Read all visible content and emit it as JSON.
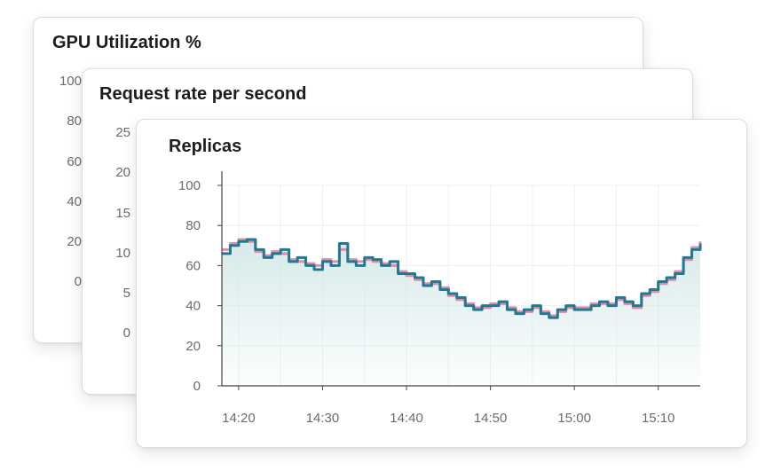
{
  "cards": [
    {
      "title": "GPU Utilization %",
      "y_ticks": [
        "100",
        "80",
        "60",
        "40",
        "20",
        "0"
      ]
    },
    {
      "title": "Request rate per second",
      "y_ticks": [
        "25",
        "20",
        "15",
        "10",
        "5",
        "0"
      ]
    },
    {
      "title": "Replicas"
    }
  ],
  "colors": {
    "series_primary": "#1f7a93",
    "series_secondary": "#e88aa6",
    "area_fill": "#d4e9e7",
    "grid": "#eceff1",
    "axis": "#444444"
  },
  "chart_data": {
    "type": "line",
    "title": "Replicas",
    "xlabel": "",
    "ylabel": "",
    "ylim": [
      0,
      100
    ],
    "y_ticks": [
      0,
      20,
      40,
      60,
      80,
      100
    ],
    "x_ticks": [
      "14:20",
      "14:30",
      "14:40",
      "14:50",
      "15:00",
      "15:10"
    ],
    "x_range_minutes": [
      "14:18",
      "15:15"
    ],
    "grid": true,
    "step": true,
    "series": [
      {
        "color": "#1f7a93",
        "x": [
          "14:18",
          "14:19",
          "14:20",
          "14:21",
          "14:22",
          "14:23",
          "14:24",
          "14:25",
          "14:26",
          "14:27",
          "14:28",
          "14:29",
          "14:30",
          "14:31",
          "14:32",
          "14:33",
          "14:34",
          "14:35",
          "14:36",
          "14:37",
          "14:38",
          "14:39",
          "14:40",
          "14:41",
          "14:42",
          "14:43",
          "14:44",
          "14:45",
          "14:46",
          "14:47",
          "14:48",
          "14:49",
          "14:50",
          "14:51",
          "14:52",
          "14:53",
          "14:54",
          "14:55",
          "14:56",
          "14:57",
          "14:58",
          "14:59",
          "15:00",
          "15:01",
          "15:02",
          "15:03",
          "15:04",
          "15:05",
          "15:06",
          "15:07",
          "15:08",
          "15:09",
          "15:10",
          "15:11",
          "15:12",
          "15:13",
          "15:14",
          "15:15"
        ],
        "y": [
          66,
          70,
          72,
          73,
          68,
          64,
          66,
          68,
          62,
          64,
          60,
          58,
          62,
          60,
          71,
          62,
          60,
          64,
          63,
          60,
          62,
          56,
          56,
          54,
          50,
          52,
          48,
          46,
          44,
          40,
          38,
          40,
          40,
          42,
          38,
          36,
          38,
          40,
          36,
          34,
          38,
          40,
          38,
          38,
          40,
          42,
          40,
          44,
          42,
          40,
          46,
          48,
          52,
          54,
          56,
          64,
          68,
          71
        ]
      },
      {
        "color": "#e88aa6",
        "x": [
          "14:18",
          "14:19",
          "14:20",
          "14:21",
          "14:22",
          "14:23",
          "14:24",
          "14:25",
          "14:26",
          "14:27",
          "14:28",
          "14:29",
          "14:30",
          "14:31",
          "14:32",
          "14:33",
          "14:34",
          "14:35",
          "14:36",
          "14:37",
          "14:38",
          "14:39",
          "14:40",
          "14:41",
          "14:42",
          "14:43",
          "14:44",
          "14:45",
          "14:46",
          "14:47",
          "14:48",
          "14:49",
          "14:50",
          "14:51",
          "14:52",
          "14:53",
          "14:54",
          "14:55",
          "14:56",
          "14:57",
          "14:58",
          "14:59",
          "15:00",
          "15:01",
          "15:02",
          "15:03",
          "15:04",
          "15:05",
          "15:06",
          "15:07",
          "15:08",
          "15:09",
          "15:10",
          "15:11",
          "15:12",
          "15:13",
          "15:14",
          "15:15"
        ],
        "y": [
          68,
          71,
          73,
          72,
          67,
          65,
          67,
          66,
          63,
          62,
          61,
          60,
          63,
          62,
          68,
          63,
          62,
          63,
          62,
          61,
          60,
          57,
          55,
          53,
          51,
          51,
          49,
          45,
          43,
          41,
          39,
          39,
          41,
          41,
          39,
          37,
          37,
          39,
          37,
          35,
          37,
          39,
          39,
          39,
          41,
          41,
          41,
          43,
          41,
          39,
          45,
          47,
          51,
          53,
          57,
          63,
          69,
          72
        ]
      }
    ]
  }
}
